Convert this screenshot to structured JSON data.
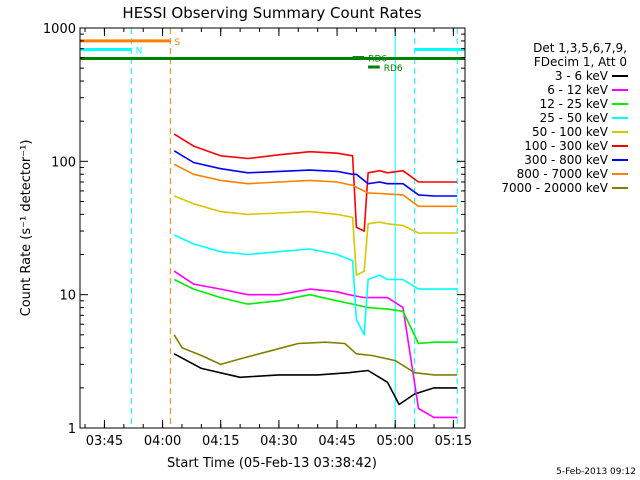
{
  "chart_data": {
    "type": "line",
    "title": "HESSI Observing Summary Count Rates",
    "xlabel": "Start Time (05-Feb-13 03:38:42)",
    "ylabel": "Count Rate (s⁻¹ detector⁻¹)",
    "ylog": true,
    "ylim": [
      1,
      1000
    ],
    "xlim": [
      "03:38:42",
      "05:18:00"
    ],
    "y_ticks": [
      "1",
      "10",
      "100",
      "1000"
    ],
    "x_ticks": [
      "03:45",
      "04:00",
      "04:15",
      "04:30",
      "04:45",
      "05:00",
      "05:15"
    ],
    "legend_header": [
      "Det 1,3,5,6,7,9,",
      "FDecim 1, Att 0"
    ],
    "legend_placement": "right",
    "footer_date": "5-Feb-2013 09:12",
    "series": [
      {
        "name": "3 - 6 keV",
        "color": "#000000",
        "points": [
          [
            "04:03",
            3.6
          ],
          [
            "04:10",
            2.8
          ],
          [
            "04:20",
            2.4
          ],
          [
            "04:30",
            2.5
          ],
          [
            "04:40",
            2.5
          ],
          [
            "04:48",
            2.6
          ],
          [
            "04:53",
            2.7
          ],
          [
            "04:58",
            2.2
          ],
          [
            "05:01",
            1.5
          ],
          [
            "05:05",
            1.8
          ],
          [
            "05:10",
            2.0
          ],
          [
            "05:16",
            2.0
          ]
        ]
      },
      {
        "name": "6 - 12 keV",
        "color": "#ff00ff",
        "points": [
          [
            "04:03",
            15
          ],
          [
            "04:08",
            12
          ],
          [
            "04:15",
            11
          ],
          [
            "04:22",
            10
          ],
          [
            "04:30",
            10
          ],
          [
            "04:38",
            11
          ],
          [
            "04:45",
            10.5
          ],
          [
            "04:48",
            10
          ],
          [
            "04:52",
            9.5
          ],
          [
            "04:55",
            9.5
          ],
          [
            "04:58",
            9.5
          ],
          [
            "05:02",
            8
          ],
          [
            "05:06",
            1.4
          ],
          [
            "05:10",
            1.2
          ],
          [
            "05:16",
            1.2
          ]
        ]
      },
      {
        "name": "12 - 25 keV",
        "color": "#00ee00",
        "points": [
          [
            "04:03",
            13
          ],
          [
            "04:08",
            11
          ],
          [
            "04:15",
            9.5
          ],
          [
            "04:22",
            8.5
          ],
          [
            "04:30",
            9
          ],
          [
            "04:38",
            10
          ],
          [
            "04:45",
            9
          ],
          [
            "04:49",
            8.5
          ],
          [
            "04:53",
            8
          ],
          [
            "04:58",
            7.8
          ],
          [
            "05:02",
            7.5
          ],
          [
            "05:06",
            4.3
          ],
          [
            "05:10",
            4.4
          ],
          [
            "05:16",
            4.4
          ]
        ]
      },
      {
        "name": "25 - 50 keV",
        "color": "#00ffff",
        "points": [
          [
            "04:03",
            28
          ],
          [
            "04:08",
            24
          ],
          [
            "04:15",
            21
          ],
          [
            "04:22",
            20
          ],
          [
            "04:30",
            21
          ],
          [
            "04:38",
            22
          ],
          [
            "04:45",
            20
          ],
          [
            "04:49",
            18
          ],
          [
            "04:50",
            6.5
          ],
          [
            "04:52",
            5
          ],
          [
            "04:53",
            13
          ],
          [
            "04:56",
            14
          ],
          [
            "04:58",
            13
          ],
          [
            "05:02",
            13
          ],
          [
            "05:06",
            11
          ],
          [
            "05:10",
            11
          ],
          [
            "05:16",
            11
          ]
        ]
      },
      {
        "name": "50 - 100 keV",
        "color": "#d8c800",
        "points": [
          [
            "04:03",
            55
          ],
          [
            "04:08",
            48
          ],
          [
            "04:15",
            42
          ],
          [
            "04:22",
            40
          ],
          [
            "04:30",
            41
          ],
          [
            "04:38",
            42
          ],
          [
            "04:45",
            40
          ],
          [
            "04:49",
            38
          ],
          [
            "04:50",
            14
          ],
          [
            "04:52",
            15
          ],
          [
            "04:53",
            34
          ],
          [
            "04:56",
            35
          ],
          [
            "04:58",
            34
          ],
          [
            "05:02",
            33
          ],
          [
            "05:06",
            29
          ],
          [
            "05:10",
            29
          ],
          [
            "05:16",
            29
          ]
        ]
      },
      {
        "name": "100 - 300 keV",
        "color": "#ff0000",
        "points": [
          [
            "04:03",
            160
          ],
          [
            "04:08",
            130
          ],
          [
            "04:15",
            110
          ],
          [
            "04:22",
            105
          ],
          [
            "04:30",
            112
          ],
          [
            "04:38",
            118
          ],
          [
            "04:45",
            115
          ],
          [
            "04:49",
            110
          ],
          [
            "04:50",
            32
          ],
          [
            "04:52",
            30
          ],
          [
            "04:53",
            82
          ],
          [
            "04:56",
            85
          ],
          [
            "04:58",
            82
          ],
          [
            "05:02",
            85
          ],
          [
            "05:06",
            70
          ],
          [
            "05:10",
            70
          ],
          [
            "05:16",
            70
          ]
        ]
      },
      {
        "name": "300 - 800 keV",
        "color": "#0000ff",
        "points": [
          [
            "04:03",
            120
          ],
          [
            "04:08",
            98
          ],
          [
            "04:15",
            88
          ],
          [
            "04:22",
            82
          ],
          [
            "04:30",
            84
          ],
          [
            "04:38",
            86
          ],
          [
            "04:45",
            84
          ],
          [
            "04:49",
            80
          ],
          [
            "04:50",
            80
          ],
          [
            "04:53",
            68
          ],
          [
            "04:56",
            70
          ],
          [
            "04:58",
            68
          ],
          [
            "05:02",
            68
          ],
          [
            "05:06",
            56
          ],
          [
            "05:10",
            55
          ],
          [
            "05:16",
            55
          ]
        ]
      },
      {
        "name": "800 - 7000 keV",
        "color": "#ff8000",
        "points": [
          [
            "04:03",
            95
          ],
          [
            "04:08",
            80
          ],
          [
            "04:15",
            72
          ],
          [
            "04:22",
            68
          ],
          [
            "04:30",
            70
          ],
          [
            "04:38",
            72
          ],
          [
            "04:45",
            70
          ],
          [
            "04:49",
            66
          ],
          [
            "04:53",
            58
          ],
          [
            "04:58",
            57
          ],
          [
            "05:02",
            56
          ],
          [
            "05:06",
            46
          ],
          [
            "05:10",
            46
          ],
          [
            "05:16",
            46
          ]
        ]
      },
      {
        "name": "7000 - 20000 keV",
        "color": "#808000",
        "points": [
          [
            "04:03",
            5
          ],
          [
            "04:05",
            4
          ],
          [
            "04:10",
            3.5
          ],
          [
            "04:15",
            3
          ],
          [
            "04:20",
            3.3
          ],
          [
            "04:28",
            3.8
          ],
          [
            "04:35",
            4.3
          ],
          [
            "04:42",
            4.4
          ],
          [
            "04:47",
            4.3
          ],
          [
            "04:50",
            3.6
          ],
          [
            "04:54",
            3.5
          ],
          [
            "05:00",
            3.2
          ],
          [
            "05:05",
            2.6
          ],
          [
            "05:10",
            2.5
          ],
          [
            "05:16",
            2.5
          ]
        ]
      }
    ],
    "annotations": [
      {
        "label": "S",
        "color": "#ff8000",
        "start": "03:38:42",
        "end": "04:02",
        "y": 800
      },
      {
        "label": "N",
        "color": "#00ffff",
        "start": "03:38:42",
        "end": "03:52",
        "y": 690
      },
      {
        "label": "",
        "color": "#008000",
        "start": "03:38:42",
        "end": "05:18",
        "y": 590
      },
      {
        "label": "RD6",
        "color": "#008000",
        "start": "04:53",
        "end": "04:56",
        "y": 510
      },
      {
        "label": "RD6",
        "color": "#008000",
        "start": "04:49",
        "end": "04:52",
        "y": 600
      },
      {
        "label": "",
        "color": "#00ffff",
        "start": "05:05",
        "end": "05:18",
        "y": 690
      }
    ],
    "vlines": [
      {
        "time": "03:52",
        "color": "#00ffff",
        "dash": true
      },
      {
        "time": "04:02",
        "color": "#ff8000",
        "dash": true
      },
      {
        "time": "05:00",
        "color": "#00ffff",
        "dash": false
      },
      {
        "time": "05:05",
        "color": "#00ffff",
        "dash": true
      },
      {
        "time": "05:16",
        "color": "#00ffff",
        "dash": true
      }
    ]
  }
}
